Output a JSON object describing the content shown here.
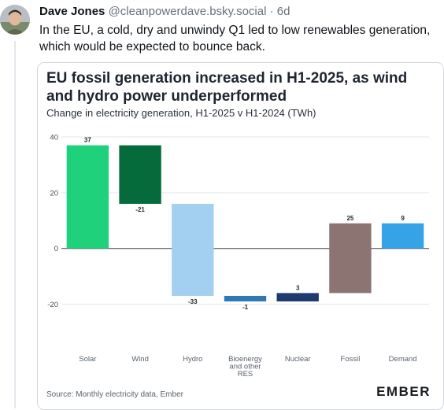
{
  "post": {
    "author_name": "Dave Jones",
    "author_handle": "@cleanpowerdave.bsky.social",
    "separator": "·",
    "age": "6d",
    "text": "In the EU, a cold, dry and unwindy Q1 led to low renewables generation, which would be expected to bounce back."
  },
  "card": {
    "source": "Source: Monthly electricity data, Ember",
    "logo": "EMBER"
  },
  "chart_data": {
    "type": "waterfall",
    "title": "EU fossil generation increased in H1-2025, as wind and hydro power underperformed",
    "subtitle": "Change in electricity generation, H1-2025 v H1-2024 (TWh)",
    "xlabel": "",
    "ylabel": "",
    "ylim": [
      -30,
      40
    ],
    "yticks": [
      40,
      20,
      0,
      -20
    ],
    "grid": true,
    "categories": [
      "Solar",
      "Wind",
      "Hydro",
      "Bioenergy and other RES",
      "Nuclear",
      "Fossil",
      "Demand"
    ],
    "values": [
      37,
      -21,
      -33,
      -1,
      3,
      25,
      9
    ],
    "value_labels": [
      "37",
      "-21",
      "-33",
      "-1",
      "3",
      "25",
      "9"
    ],
    "bar_ranges": [
      [
        0,
        37
      ],
      [
        16,
        37
      ],
      [
        -17,
        16
      ],
      [
        -19,
        -17
      ],
      [
        -19,
        -16
      ],
      [
        -16,
        9
      ],
      [
        0,
        9
      ]
    ],
    "colors": [
      "#1fd17a",
      "#056b3a",
      "#a3cff0",
      "#2f78b5",
      "#1e3a6e",
      "#8b7472",
      "#36a3e6"
    ]
  }
}
